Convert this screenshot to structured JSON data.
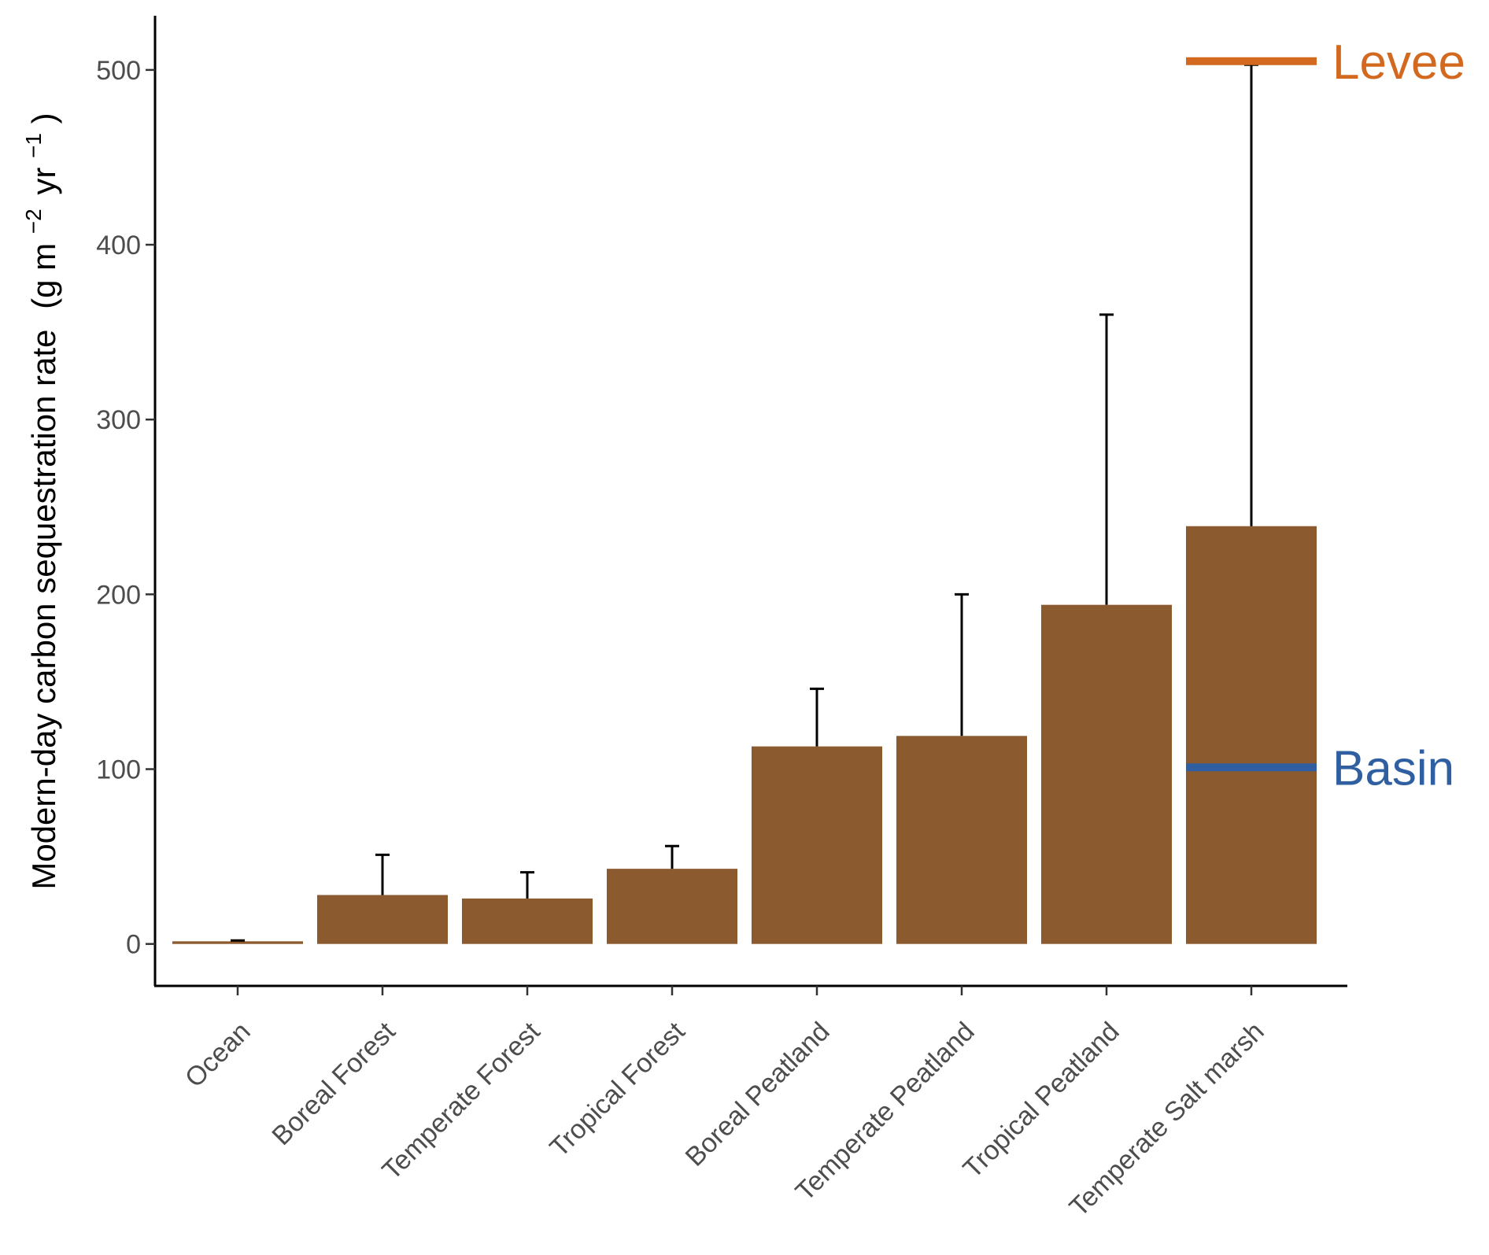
{
  "chart_data": {
    "type": "bar",
    "categories": [
      "Ocean",
      "Boreal Forest",
      "Temperate Forest",
      "Tropical Forest",
      "Boreal Peatland",
      "Temperate Peatland",
      "Tropical Peatland",
      "Temperate Salt marsh"
    ],
    "values": [
      1.5,
      28,
      26,
      43,
      113,
      119,
      194,
      239
    ],
    "error_upper": [
      2,
      51,
      41,
      56,
      146,
      200,
      360,
      503
    ],
    "ylabel": {
      "main": "Modern-day carbon sequestration rate",
      "unit_open": "(g m",
      "sup1": "−2",
      "unit_mid": "yr",
      "sup2": "−1",
      "unit_close": ")"
    },
    "ylim": [
      -24,
      531
    ],
    "yticks": [
      0,
      100,
      200,
      300,
      400,
      500
    ],
    "grid": false,
    "bar_color": "#8b5a2e",
    "annotations": [
      {
        "label": "Levee",
        "value": 505,
        "color": "#d2691e",
        "category": "Temperate Salt marsh"
      },
      {
        "label": "Basin",
        "value": 101,
        "color": "#2f5fa0",
        "category": "Temperate Salt marsh"
      }
    ]
  }
}
